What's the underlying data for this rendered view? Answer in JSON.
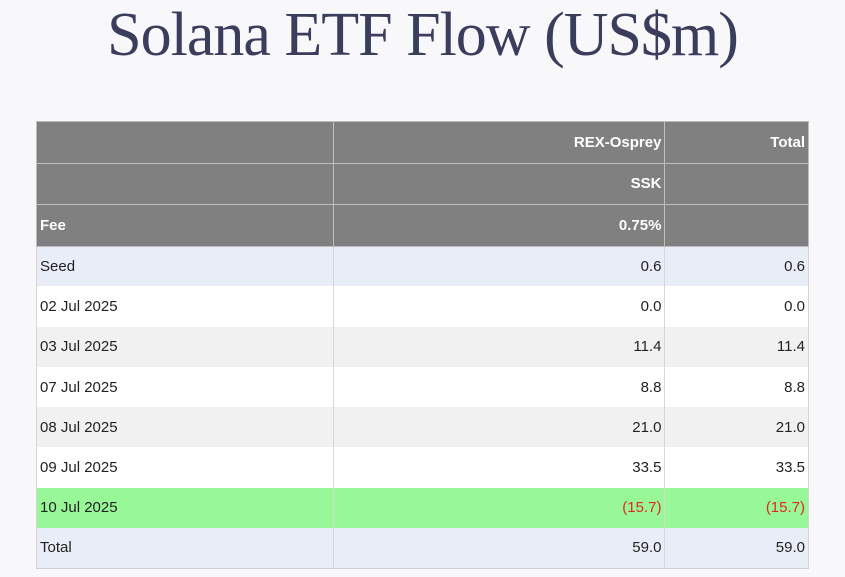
{
  "title": "Solana ETF Flow (US$m)",
  "table": {
    "header_rows": [
      [
        "",
        "REX-Osprey",
        "Total"
      ],
      [
        "",
        "SSK",
        ""
      ],
      [
        "Fee",
        "0.75%",
        ""
      ]
    ],
    "rows": [
      {
        "label": "Seed",
        "rex": "0.6",
        "total": "0.6"
      },
      {
        "label": "02 Jul 2025",
        "rex": "0.0",
        "total": "0.0"
      },
      {
        "label": "03 Jul 2025",
        "rex": "11.4",
        "total": "11.4"
      },
      {
        "label": "07 Jul 2025",
        "rex": "8.8",
        "total": "8.8"
      },
      {
        "label": "08 Jul 2025",
        "rex": "21.0",
        "total": "21.0"
      },
      {
        "label": "09 Jul 2025",
        "rex": "33.5",
        "total": "33.5"
      },
      {
        "label": "10 Jul 2025",
        "rex": "(15.7)",
        "total": "(15.7)"
      },
      {
        "label": "Total",
        "rex": "59.0",
        "total": "59.0"
      }
    ]
  },
  "colors": {
    "header_bg": "#808080",
    "highlight_row": "#98f898",
    "negative_text": "#e0281e",
    "title_text": "#3a3d5c"
  }
}
